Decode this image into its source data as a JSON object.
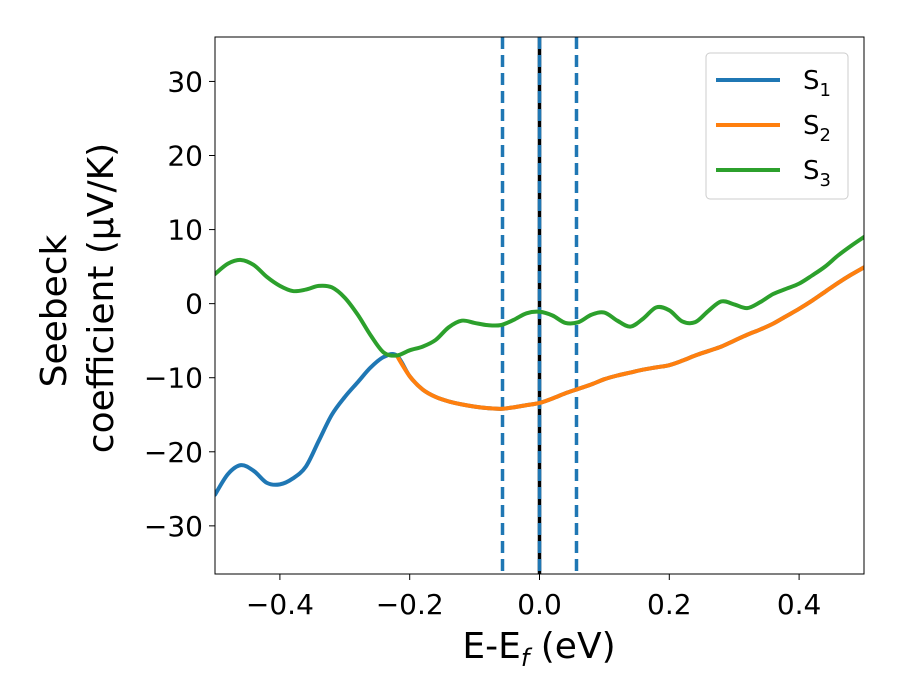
{
  "chart_data": {
    "type": "line",
    "xlabel": {
      "main": "E-E",
      "sub": "f",
      "unit": " (eV)"
    },
    "ylabel": {
      "line1": "Seebeck",
      "line2": "coefficient  (μV/K)"
    },
    "xlim": [
      -0.5,
      0.5
    ],
    "ylim": [
      -36.5,
      36
    ],
    "x_ticks": [
      {
        "value": -0.4,
        "label": "−0.4"
      },
      {
        "value": -0.2,
        "label": "−0.2"
      },
      {
        "value": 0.0,
        "label": "0.0"
      },
      {
        "value": 0.2,
        "label": "0.2"
      },
      {
        "value": 0.4,
        "label": "0.4"
      }
    ],
    "y_ticks": [
      {
        "value": 30,
        "label": "30"
      },
      {
        "value": 20,
        "label": "20"
      },
      {
        "value": 10,
        "label": "10"
      },
      {
        "value": 0,
        "label": "0"
      },
      {
        "value": -10,
        "label": "−10"
      },
      {
        "value": -20,
        "label": "−20"
      },
      {
        "value": -30,
        "label": "−30"
      }
    ],
    "grid": false,
    "legend_position": "top-right",
    "vertical_lines": [
      {
        "x": -0.057,
        "style": "dashed",
        "color": "#1f77b4"
      },
      {
        "x": 0.0,
        "style": "solid",
        "color": "#000000"
      },
      {
        "x": 0.0,
        "style": "dashed",
        "color": "#1f77b4"
      },
      {
        "x": 0.057,
        "style": "dashed",
        "color": "#1f77b4"
      }
    ],
    "series": [
      {
        "name": "S",
        "sub": "1",
        "color": "#1f77b4",
        "x": [
          -0.5,
          -0.48,
          -0.46,
          -0.44,
          -0.42,
          -0.4,
          -0.38,
          -0.36,
          -0.34,
          -0.32,
          -0.3,
          -0.28,
          -0.26,
          -0.24,
          -0.22,
          -0.2,
          -0.18,
          -0.16,
          -0.14,
          -0.12,
          -0.1,
          -0.08,
          -0.06,
          -0.04,
          -0.02,
          0.0,
          0.02,
          0.04,
          0.06,
          0.08,
          0.1,
          0.12,
          0.14,
          0.16,
          0.18,
          0.2,
          0.22,
          0.24,
          0.26,
          0.28,
          0.3,
          0.32,
          0.34,
          0.36,
          0.38,
          0.4,
          0.42,
          0.44,
          0.46,
          0.48,
          0.5
        ],
        "values": [
          -25.8,
          -23.0,
          -21.8,
          -22.6,
          -24.2,
          -24.4,
          -23.6,
          -22.0,
          -18.5,
          -15.0,
          -12.6,
          -10.6,
          -8.6,
          -7.2,
          -7.0,
          -9.8,
          -11.6,
          -12.6,
          -13.2,
          -13.6,
          -13.9,
          -14.1,
          -14.2,
          -14.0,
          -13.7,
          -13.4,
          -12.8,
          -12.1,
          -11.5,
          -10.9,
          -10.2,
          -9.7,
          -9.3,
          -8.9,
          -8.6,
          -8.3,
          -7.7,
          -7.0,
          -6.4,
          -5.8,
          -5.0,
          -4.2,
          -3.5,
          -2.7,
          -1.7,
          -0.7,
          0.4,
          1.6,
          2.8,
          3.9,
          4.9
        ]
      },
      {
        "name": "S",
        "sub": "2",
        "color": "#ff7f0e",
        "x": [
          -0.22,
          -0.2,
          -0.18,
          -0.16,
          -0.14,
          -0.12,
          -0.1,
          -0.08,
          -0.06,
          -0.04,
          -0.02,
          0.0,
          0.02,
          0.04,
          0.06,
          0.08,
          0.1,
          0.12,
          0.14,
          0.16,
          0.18,
          0.2,
          0.22,
          0.24,
          0.26,
          0.28,
          0.3,
          0.32,
          0.34,
          0.36,
          0.38,
          0.4,
          0.42,
          0.44,
          0.46,
          0.48,
          0.5
        ],
        "values": [
          -7.0,
          -9.8,
          -11.6,
          -12.6,
          -13.2,
          -13.6,
          -13.9,
          -14.1,
          -14.2,
          -14.0,
          -13.7,
          -13.4,
          -12.8,
          -12.1,
          -11.5,
          -10.9,
          -10.2,
          -9.7,
          -9.3,
          -8.9,
          -8.6,
          -8.3,
          -7.7,
          -7.0,
          -6.4,
          -5.8,
          -5.0,
          -4.2,
          -3.5,
          -2.7,
          -1.7,
          -0.7,
          0.4,
          1.6,
          2.8,
          3.9,
          4.9
        ]
      },
      {
        "name": "S",
        "sub": "3",
        "color": "#2ca02c",
        "x": [
          -0.5,
          -0.48,
          -0.46,
          -0.44,
          -0.42,
          -0.4,
          -0.38,
          -0.36,
          -0.34,
          -0.32,
          -0.3,
          -0.28,
          -0.26,
          -0.24,
          -0.22,
          -0.2,
          -0.18,
          -0.16,
          -0.14,
          -0.12,
          -0.1,
          -0.08,
          -0.06,
          -0.04,
          -0.02,
          0.0,
          0.02,
          0.04,
          0.06,
          0.08,
          0.1,
          0.12,
          0.14,
          0.16,
          0.18,
          0.2,
          0.22,
          0.24,
          0.26,
          0.28,
          0.3,
          0.32,
          0.34,
          0.36,
          0.38,
          0.4,
          0.42,
          0.44,
          0.46,
          0.48,
          0.5
        ],
        "values": [
          4.0,
          5.4,
          5.9,
          5.2,
          3.6,
          2.4,
          1.7,
          1.9,
          2.4,
          2.2,
          0.8,
          -1.5,
          -4.3,
          -6.6,
          -7.0,
          -6.3,
          -5.8,
          -4.9,
          -3.2,
          -2.3,
          -2.6,
          -2.9,
          -2.9,
          -2.2,
          -1.3,
          -1.1,
          -1.6,
          -2.6,
          -2.5,
          -1.5,
          -1.2,
          -2.3,
          -3.1,
          -2.0,
          -0.5,
          -0.9,
          -2.4,
          -2.5,
          -1.0,
          0.3,
          -0.1,
          -0.6,
          0.2,
          1.3,
          2.0,
          2.7,
          3.8,
          5.0,
          6.5,
          7.8,
          9.0
        ]
      }
    ]
  }
}
